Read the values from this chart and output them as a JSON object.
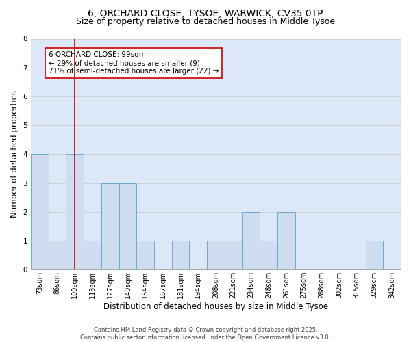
{
  "title_line1": "6, ORCHARD CLOSE, TYSOE, WARWICK, CV35 0TP",
  "title_line2": "Size of property relative to detached houses in Middle Tysoe",
  "xlabel": "Distribution of detached houses by size in Middle Tysoe",
  "ylabel": "Number of detached properties",
  "bins": [
    "73sqm",
    "86sqm",
    "100sqm",
    "113sqm",
    "127sqm",
    "140sqm",
    "154sqm",
    "167sqm",
    "181sqm",
    "194sqm",
    "208sqm",
    "221sqm",
    "234sqm",
    "248sqm",
    "261sqm",
    "275sqm",
    "288sqm",
    "302sqm",
    "315sqm",
    "329sqm",
    "342sqm"
  ],
  "heights": [
    4,
    1,
    4,
    1,
    3,
    3,
    1,
    0,
    1,
    0,
    1,
    1,
    2,
    1,
    2,
    0,
    0,
    0,
    0,
    1,
    0
  ],
  "bar_color": "#cfddf0",
  "bar_edge_color": "#6aaad4",
  "redline_x": 2,
  "annotation_text": "6 ORCHARD CLOSE: 99sqm\n← 29% of detached houses are smaller (9)\n71% of semi-detached houses are larger (22) →",
  "annotation_box_color": "#ffffff",
  "annotation_box_edge_color": "#cc0000",
  "redline_color": "#cc0000",
  "ylim": [
    0,
    8
  ],
  "yticks": [
    0,
    1,
    2,
    3,
    4,
    5,
    6,
    7,
    8
  ],
  "grid_color": "#cccccc",
  "bg_color": "#dce8f8",
  "footer_line1": "Contains HM Land Registry data © Crown copyright and database right 2025.",
  "footer_line2": "Contains public sector information licensed under the Open Government Licence v3.0.",
  "title_fontsize": 10,
  "subtitle_fontsize": 9,
  "label_fontsize": 8.5,
  "tick_fontsize": 7,
  "annotation_fontsize": 7.5,
  "footer_fontsize": 6
}
